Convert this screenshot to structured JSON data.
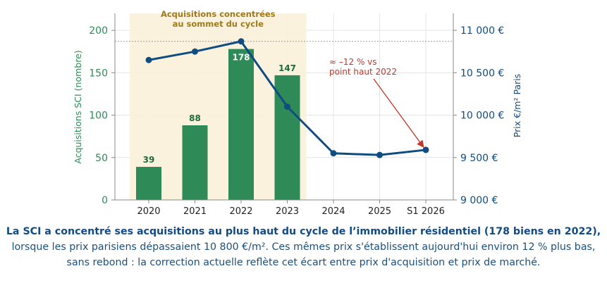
{
  "chart_data": {
    "type": "bar+line",
    "categories": [
      "2020",
      "2021",
      "2022",
      "2023",
      "2024",
      "2025",
      "S1 2026"
    ],
    "bars": {
      "axis_label": "Acquisitions SCI (nombre)",
      "values": [
        39,
        88,
        178,
        147,
        null,
        null,
        null
      ],
      "data_labels": [
        "39",
        "88",
        "178",
        "147"
      ],
      "ylim": [
        0,
        220
      ],
      "ticks": [
        "0",
        "50",
        "100",
        "150",
        "200"
      ],
      "color": "#2e8b57"
    },
    "line": {
      "axis_label": "Prix €/m² Paris",
      "values": [
        10650,
        10750,
        10870,
        10100,
        9550,
        9530,
        9590
      ],
      "ylim": [
        9000,
        11200
      ],
      "ticks": [
        "9 000 €",
        "9 500 €",
        "10 000 €",
        "10 500 €",
        "11 000 €"
      ],
      "reference_line": 10870,
      "color": "#0f4c81"
    },
    "highlight": {
      "label_line1": "Acquisitions concentrées",
      "label_line2": "au sommet du cycle",
      "from_category": "2020",
      "to_category": "2023"
    },
    "annotation": {
      "line1": "≈ –12 % vs",
      "line2": "point haut 2022",
      "points_to": "S1 2026",
      "color": "#c0392b"
    },
    "grid": true
  },
  "caption": {
    "bold": "La SCI a concentré ses acquisitions au plus haut du cycle de l’immobilier résidentiel (178 biens en 2022),",
    "rest": " lorsque les prix parisiens dépassaient 10 800 €/m². Ces mêmes prix s'établissent aujourd'hui environ 12 % plus bas, sans rebond : la correction actuelle reflète cet écart entre prix d'acquisition et prix de marché."
  }
}
